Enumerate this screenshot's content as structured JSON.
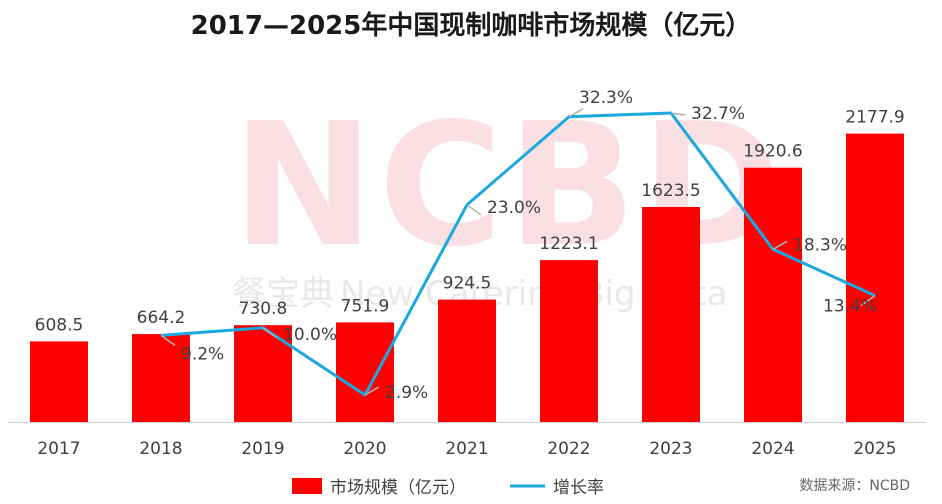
{
  "chart_data": {
    "type": "bar",
    "title": "2017—2025年中国现制咖啡市场规模（亿元）",
    "categories": [
      "2017",
      "2018",
      "2019",
      "2020",
      "2021",
      "2022",
      "2023",
      "2024",
      "2025"
    ],
    "series": [
      {
        "name": "市场规模（亿元）",
        "type": "bar",
        "color": "#ff0000",
        "values": [
          608.5,
          664.2,
          730.8,
          751.9,
          924.5,
          1223.1,
          1623.5,
          1920.6,
          2177.9
        ],
        "labels": [
          "608.5",
          "664.2",
          "730.8",
          "751.9",
          "924.5",
          "1223.1",
          "1623.5",
          "1920.6",
          "2177.9"
        ]
      },
      {
        "name": "增长率",
        "type": "line",
        "color": "#1aa8e0",
        "x": [
          "2018",
          "2019",
          "2020",
          "2021",
          "2022",
          "2023",
          "2024",
          "2025"
        ],
        "values": [
          9.2,
          10.0,
          2.9,
          23.0,
          32.3,
          32.7,
          18.3,
          13.4
        ],
        "labels": [
          "9.2%",
          "10.0%",
          "2.9%",
          "23.0%",
          "32.3%",
          "32.7%",
          "18.3%",
          "13.4%"
        ]
      }
    ],
    "legend_position": "bottom",
    "grid": false
  },
  "watermark": {
    "brand": "NCBD",
    "cn": "餐宝典",
    "en": "New Catering Big Data"
  },
  "source_note": "数据来源：NCBD"
}
